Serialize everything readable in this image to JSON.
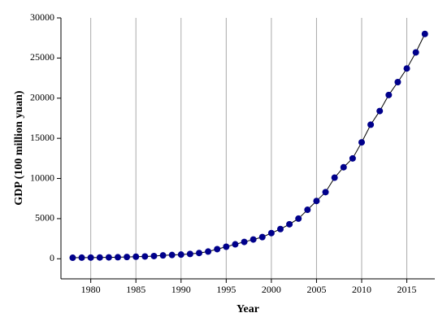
{
  "chart_data": {
    "type": "line",
    "x_label": "Year",
    "y_label": "GDP (100 million yuan)",
    "x": [
      1978,
      1979,
      1980,
      1981,
      1982,
      1983,
      1984,
      1985,
      1986,
      1987,
      1988,
      1989,
      1990,
      1991,
      1992,
      1993,
      1994,
      1995,
      1996,
      1997,
      1998,
      1999,
      2000,
      2001,
      2002,
      2003,
      2004,
      2005,
      2006,
      2007,
      2008,
      2009,
      2010,
      2011,
      2012,
      2013,
      2014,
      2015,
      2016,
      2017
    ],
    "series": [
      {
        "name": "GDP",
        "color": "#00008b",
        "values": [
          130,
          140,
          150,
          160,
          175,
          190,
          220,
          260,
          290,
          340,
          420,
          470,
          520,
          600,
          720,
          900,
          1200,
          1500,
          1800,
          2100,
          2400,
          2700,
          3200,
          3700,
          4300,
          5000,
          6100,
          7200,
          8300,
          10100,
          11400,
          12500,
          14500,
          16700,
          18400,
          20400,
          22000,
          23700,
          25700,
          28000
        ]
      }
    ],
    "xlim": [
      1976.7,
      2018.1
    ],
    "xticks": [
      1980,
      1985,
      1990,
      1995,
      2000,
      2005,
      2010,
      2015
    ],
    "ylim": [
      -2500,
      30000
    ],
    "yticks": [
      0,
      5000,
      10000,
      15000,
      20000,
      25000,
      30000
    ],
    "grid": "x"
  }
}
